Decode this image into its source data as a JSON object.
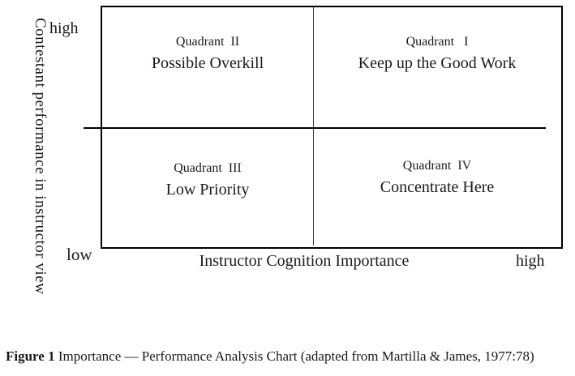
{
  "figure": {
    "y_axis": {
      "label": "Contestant performance in instructor view",
      "top_tick": "high",
      "bottom_tick": "low"
    },
    "x_axis": {
      "label": "Instructor Cognition Importance",
      "right_tick": "high"
    },
    "quadrants": [
      {
        "id": "II",
        "position": "top-left",
        "title": "Quadrant  II",
        "subtitle": "Possible Overkill"
      },
      {
        "id": "I",
        "position": "top-right",
        "title": "Quadrant   I",
        "subtitle": "Keep up the Good Work"
      },
      {
        "id": "III",
        "position": "bottom-left",
        "title": "Quadrant  III",
        "subtitle": "Low Priority"
      },
      {
        "id": "IV",
        "position": "bottom-right",
        "title": "Quadrant  IV",
        "subtitle": "Concentrate Here"
      }
    ],
    "caption": {
      "label": "Figure 1",
      "text": " Importance — Performance Analysis Chart (adapted from Martilla & James, 1977:78)"
    }
  },
  "colors": {
    "background": "#ffffff",
    "line": "#000000",
    "divider": "#3a3a3a",
    "text": "#1a1a1a"
  }
}
